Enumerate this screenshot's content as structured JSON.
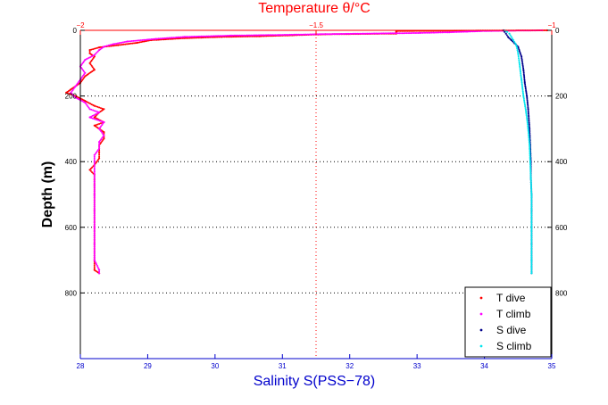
{
  "chart_data": {
    "type": "scatter",
    "title": "",
    "ylabel": "Depth (m)",
    "y_axis": {
      "range": [
        0,
        1000
      ],
      "reversed": true,
      "ticks_left": [
        "0",
        "200",
        "400",
        "600",
        "800"
      ],
      "ticks_right": [
        "0",
        "200",
        "400",
        "600",
        "800"
      ],
      "gridlines": [
        200,
        400,
        600,
        800
      ]
    },
    "x_bottom": {
      "label": "Salinity S(PSS−78)",
      "range": [
        28,
        35
      ],
      "ticks": [
        "28",
        "29",
        "30",
        "31",
        "32",
        "33",
        "34",
        "35"
      ],
      "color": "#0000cc"
    },
    "x_top": {
      "label": "Temperature θ/°C",
      "range": [
        -2,
        -1
      ],
      "ticks": [
        "−2",
        "−1.5",
        "−1"
      ],
      "gridlines": [
        -1.5
      ],
      "color": "#ff0000"
    },
    "legend": {
      "position": "bottom-right"
    },
    "series": [
      {
        "name": "T dive",
        "axis": "temperature",
        "color": "#ff0000",
        "points": [
          [
            -1.01,
            0
          ],
          [
            -1.33,
            2
          ],
          [
            -1.33,
            5
          ],
          [
            -1.33,
            8
          ],
          [
            -1.33,
            10
          ],
          [
            -1.48,
            12
          ],
          [
            -1.55,
            15
          ],
          [
            -1.62,
            18
          ],
          [
            -1.7,
            20
          ],
          [
            -1.78,
            24
          ],
          [
            -1.85,
            30
          ],
          [
            -1.88,
            38
          ],
          [
            -1.92,
            45
          ],
          [
            -1.96,
            52
          ],
          [
            -1.98,
            60
          ],
          [
            -1.98,
            70
          ],
          [
            -1.97,
            80
          ],
          [
            -1.98,
            100
          ],
          [
            -1.97,
            120
          ],
          [
            -1.99,
            140
          ],
          [
            -2.0,
            160
          ],
          [
            -2.02,
            180
          ],
          [
            -2.03,
            190
          ],
          [
            -2.01,
            200
          ],
          [
            -1.99,
            215
          ],
          [
            -1.97,
            230
          ],
          [
            -1.95,
            240
          ],
          [
            -1.96,
            250
          ],
          [
            -1.97,
            265
          ],
          [
            -1.95,
            280
          ],
          [
            -1.97,
            290
          ],
          [
            -1.95,
            310
          ],
          [
            -1.95,
            330
          ],
          [
            -1.96,
            350
          ],
          [
            -1.96,
            370
          ],
          [
            -1.96,
            390
          ],
          [
            -1.97,
            410
          ],
          [
            -1.98,
            425
          ],
          [
            -1.97,
            440
          ],
          [
            -1.97,
            455
          ],
          [
            -1.97,
            470
          ],
          [
            -1.97,
            500
          ],
          [
            -1.97,
            550
          ],
          [
            -1.97,
            600
          ],
          [
            -1.97,
            650
          ],
          [
            -1.97,
            700
          ],
          [
            -1.97,
            730
          ],
          [
            -1.96,
            740
          ]
        ]
      },
      {
        "name": "T climb",
        "axis": "temperature",
        "color": "#ff00ff",
        "points": [
          [
            -1.02,
            0
          ],
          [
            -1.14,
            2
          ],
          [
            -1.18,
            4
          ],
          [
            -1.22,
            6
          ],
          [
            -1.28,
            8
          ],
          [
            -1.4,
            10
          ],
          [
            -1.5,
            12
          ],
          [
            -1.58,
            14
          ],
          [
            -1.68,
            16
          ],
          [
            -1.78,
            20
          ],
          [
            -1.84,
            26
          ],
          [
            -1.9,
            34
          ],
          [
            -1.93,
            42
          ],
          [
            -1.95,
            50
          ],
          [
            -1.96,
            60
          ],
          [
            -1.97,
            75
          ],
          [
            -1.99,
            90
          ],
          [
            -2.0,
            110
          ],
          [
            -1.99,
            130
          ],
          [
            -2.0,
            150
          ],
          [
            -2.01,
            170
          ],
          [
            -2.02,
            190
          ],
          [
            -2.01,
            205
          ],
          [
            -1.99,
            220
          ],
          [
            -1.98,
            240
          ],
          [
            -1.96,
            250
          ],
          [
            -1.98,
            265
          ],
          [
            -1.95,
            280
          ],
          [
            -1.96,
            300
          ],
          [
            -1.95,
            320
          ],
          [
            -1.96,
            340
          ],
          [
            -1.96,
            360
          ],
          [
            -1.97,
            380
          ],
          [
            -1.97,
            400
          ],
          [
            -1.97,
            430
          ],
          [
            -1.97,
            460
          ],
          [
            -1.97,
            500
          ],
          [
            -1.97,
            550
          ],
          [
            -1.97,
            600
          ],
          [
            -1.97,
            650
          ],
          [
            -1.97,
            700
          ],
          [
            -1.96,
            730
          ],
          [
            -1.96,
            740
          ]
        ]
      },
      {
        "name": "S dive",
        "axis": "salinity",
        "color": "#00008b",
        "points": [
          [
            34.28,
            0
          ],
          [
            34.3,
            5
          ],
          [
            34.32,
            10
          ],
          [
            34.35,
            20
          ],
          [
            34.4,
            30
          ],
          [
            34.45,
            40
          ],
          [
            34.5,
            50
          ],
          [
            34.55,
            80
          ],
          [
            34.58,
            120
          ],
          [
            34.6,
            160
          ],
          [
            34.63,
            200
          ],
          [
            34.65,
            240
          ],
          [
            34.67,
            300
          ],
          [
            34.68,
            350
          ],
          [
            34.69,
            400
          ],
          [
            34.69,
            450
          ],
          [
            34.7,
            500
          ],
          [
            34.7,
            550
          ],
          [
            34.7,
            600
          ],
          [
            34.7,
            650
          ],
          [
            34.7,
            700
          ],
          [
            34.7,
            740
          ]
        ]
      },
      {
        "name": "S climb",
        "axis": "salinity",
        "color": "#00e5ee",
        "points": [
          [
            34.3,
            0
          ],
          [
            34.34,
            5
          ],
          [
            34.37,
            10
          ],
          [
            34.4,
            20
          ],
          [
            34.43,
            30
          ],
          [
            34.46,
            40
          ],
          [
            34.48,
            50
          ],
          [
            34.5,
            70
          ],
          [
            34.52,
            100
          ],
          [
            34.55,
            150
          ],
          [
            34.58,
            200
          ],
          [
            34.62,
            250
          ],
          [
            34.65,
            300
          ],
          [
            34.67,
            350
          ],
          [
            34.68,
            400
          ],
          [
            34.69,
            450
          ],
          [
            34.7,
            500
          ],
          [
            34.7,
            600
          ],
          [
            34.7,
            700
          ],
          [
            34.7,
            740
          ]
        ]
      }
    ]
  }
}
